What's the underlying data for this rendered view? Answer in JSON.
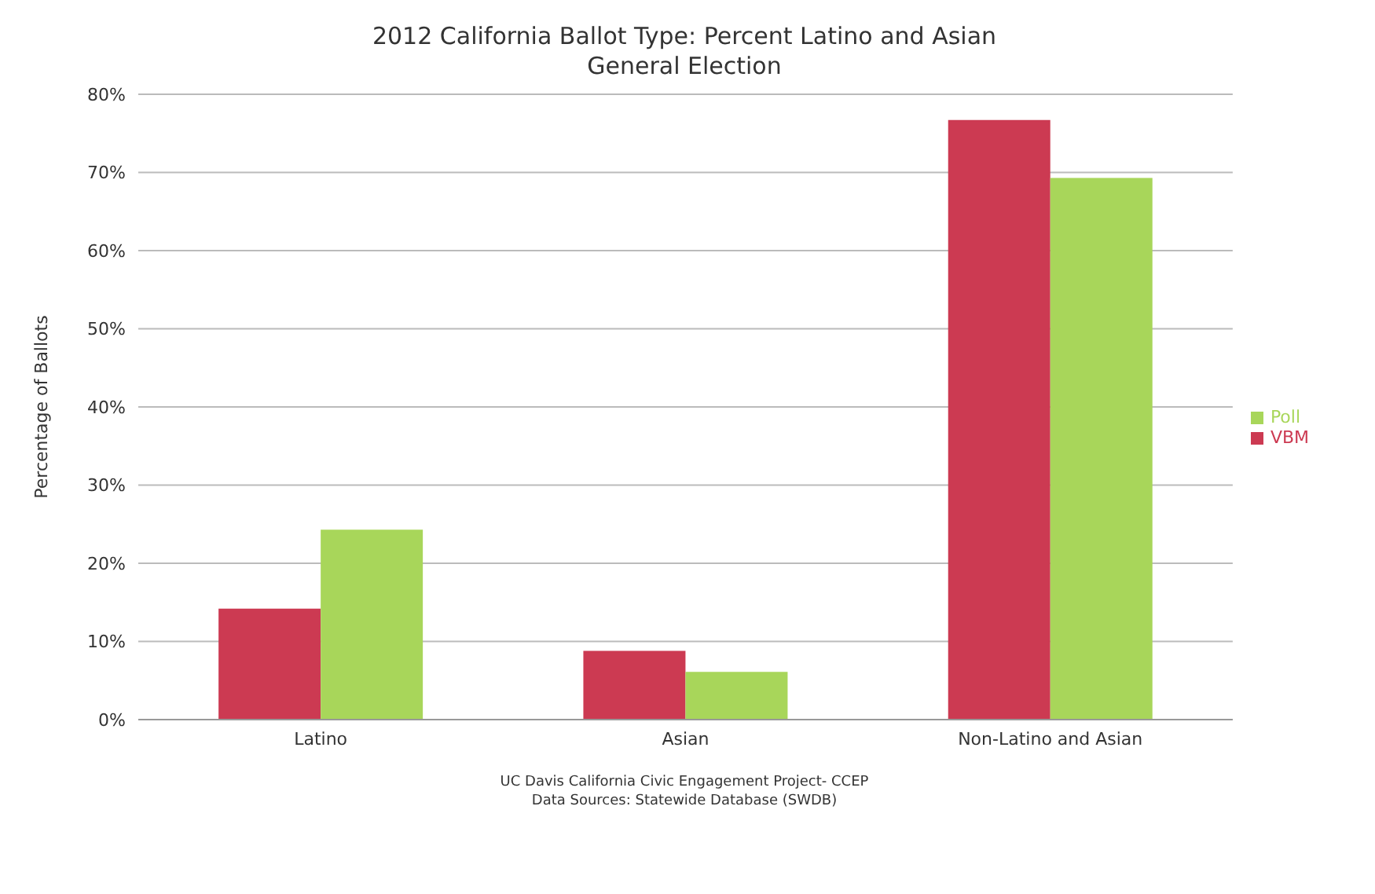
{
  "chart_data": {
    "type": "bar",
    "title": "2012 California Ballot Type: Percent Latino and Asian\nGeneral Election",
    "ylabel": "Percentage of Ballots",
    "categories": [
      "Latino",
      "Asian",
      "Non-Latino and Asian"
    ],
    "series": [
      {
        "name": "VBM",
        "color": "#cc3a52",
        "values": [
          14.2,
          8.8,
          76.7
        ]
      },
      {
        "name": "Poll",
        "color": "#a8d65a",
        "values": [
          24.3,
          6.1,
          69.3
        ]
      }
    ],
    "ylim": [
      0,
      80
    ],
    "yticks": [
      {
        "value": 0,
        "label": "0%"
      },
      {
        "value": 10,
        "label": "10%"
      },
      {
        "value": 20,
        "label": "20%"
      },
      {
        "value": 30,
        "label": "30%"
      },
      {
        "value": 40,
        "label": "40%"
      },
      {
        "value": 50,
        "label": "50%"
      },
      {
        "value": 60,
        "label": "60%"
      },
      {
        "value": 70,
        "label": "70%"
      },
      {
        "value": 80,
        "label": "80%"
      }
    ],
    "grid": "y",
    "legend": "right",
    "annotations": [
      "UC Davis California Civic Engagement Project- CCEP",
      "Data Sources: Statewide Database (SWDB)"
    ]
  }
}
